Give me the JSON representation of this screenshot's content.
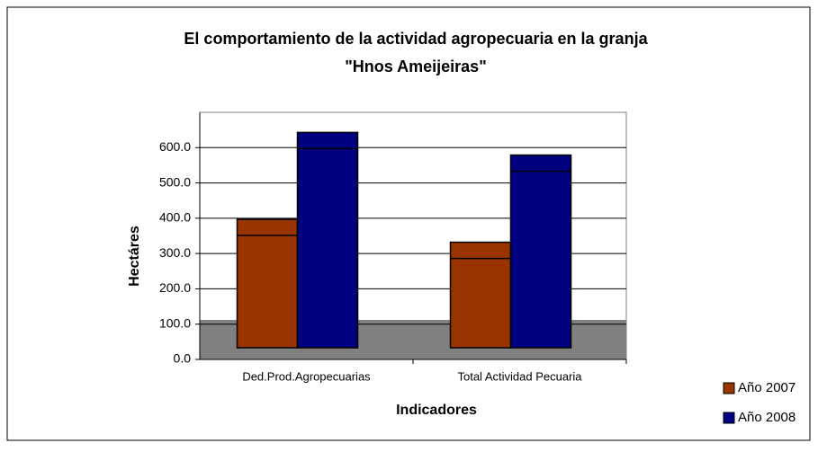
{
  "chart_data": {
    "type": "bar",
    "title": [
      "El comportamiento de la actividad agropecuaria en la granja",
      "\"Hnos Ameijeiras\""
    ],
    "x_label": "Indicadores",
    "y_label": "Hectáres",
    "categories": [
      "Ded.Prod.Agropecuarias",
      "Total  Actividad  Pecuaria"
    ],
    "series": [
      {
        "name": "Año 2007",
        "color": "#993300",
        "values": [
          397,
          332
        ]
      },
      {
        "name": "Año 2008",
        "color": "#000080",
        "values": [
          643,
          579
        ]
      }
    ],
    "ylim": [
      0,
      700
    ],
    "yticks": [
      {
        "value": 0,
        "label": "0.0"
      },
      {
        "value": 100,
        "label": "100.0"
      },
      {
        "value": 200,
        "label": "200.0"
      },
      {
        "value": 300,
        "label": "300.0"
      },
      {
        "value": 400,
        "label": "400.0"
      },
      {
        "value": 500,
        "label": "500.0"
      },
      {
        "value": 600,
        "label": "600.0"
      }
    ],
    "grid": true,
    "legend": "bottom-right"
  }
}
